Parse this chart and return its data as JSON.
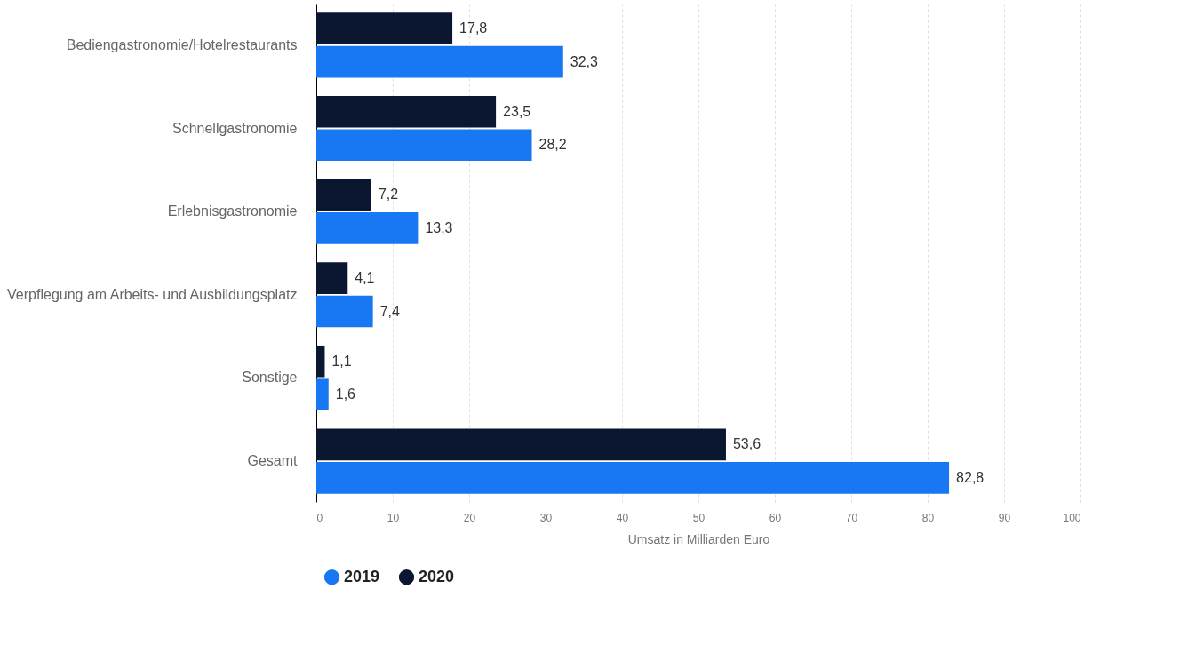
{
  "chart_data": {
    "type": "bar",
    "orientation": "horizontal",
    "xlabel": "Umsatz in Milliarden Euro",
    "categories": [
      "Bediengastronomie/Hotelrestaurants",
      "Schnellgastronomie",
      "Erlebnisgastronomie",
      "Verpflegung am Arbeits- und Ausbildungsplatz",
      "Sonstige",
      "Gesamt"
    ],
    "series": [
      {
        "name": "2019",
        "color": "#1877f2",
        "values": [
          32.3,
          28.2,
          13.3,
          7.4,
          1.6,
          82.8
        ],
        "value_labels": [
          "32,3",
          "28,2",
          "13,3",
          "7,4",
          "1,6",
          "82,8"
        ]
      },
      {
        "name": "2020",
        "color": "#0b1730",
        "values": [
          17.8,
          23.5,
          7.2,
          4.1,
          1.1,
          53.6
        ],
        "value_labels": [
          "17,8",
          "23,5",
          "7,2",
          "4,1",
          "1,1",
          "53,6"
        ]
      }
    ],
    "xlim": [
      0,
      100
    ],
    "xticks": [
      0,
      10,
      20,
      30,
      40,
      50,
      60,
      70,
      80,
      90,
      100
    ],
    "grid": "x",
    "legend": "bottom"
  }
}
